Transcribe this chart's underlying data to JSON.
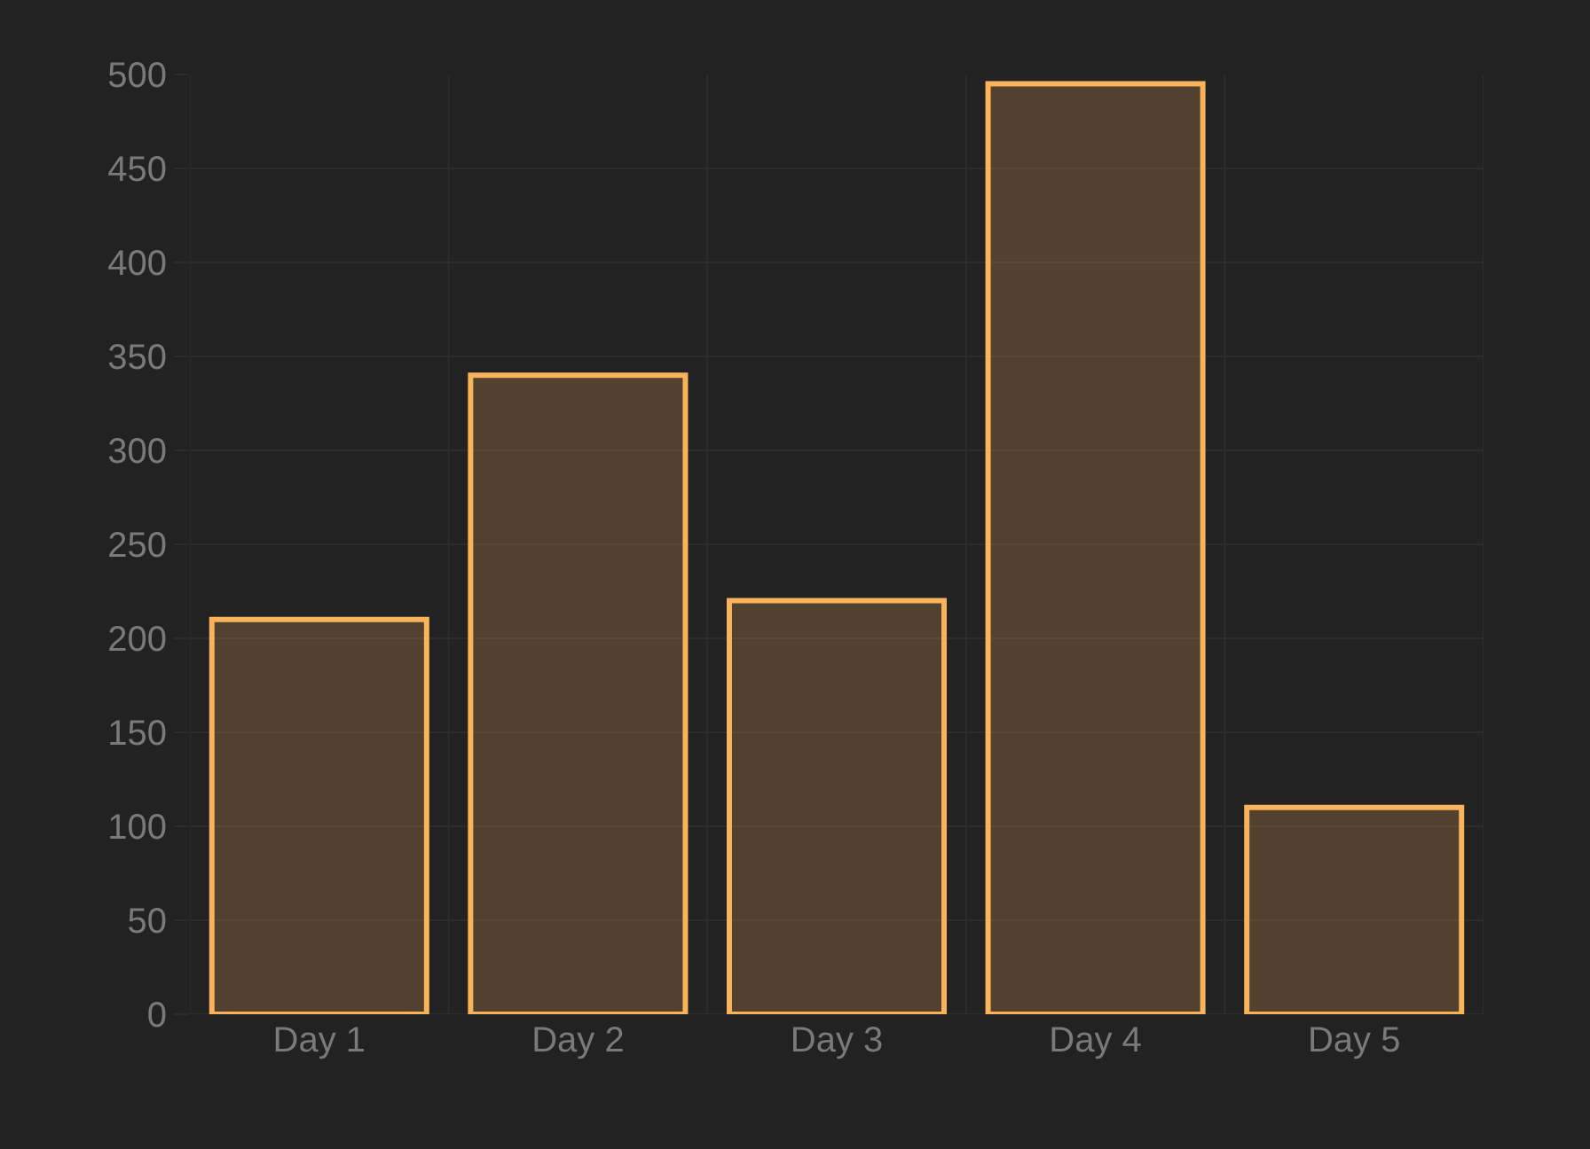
{
  "chart_data": {
    "type": "bar",
    "categories": [
      "Day 1",
      "Day 2",
      "Day 3",
      "Day 4",
      "Day 5"
    ],
    "values": [
      210,
      340,
      220,
      495,
      110
    ],
    "color": "#f9b35b",
    "ylim": [
      0,
      500
    ],
    "yticks": [
      0,
      50,
      100,
      150,
      200,
      250,
      300,
      350,
      400,
      450,
      500
    ],
    "grid": true
  }
}
